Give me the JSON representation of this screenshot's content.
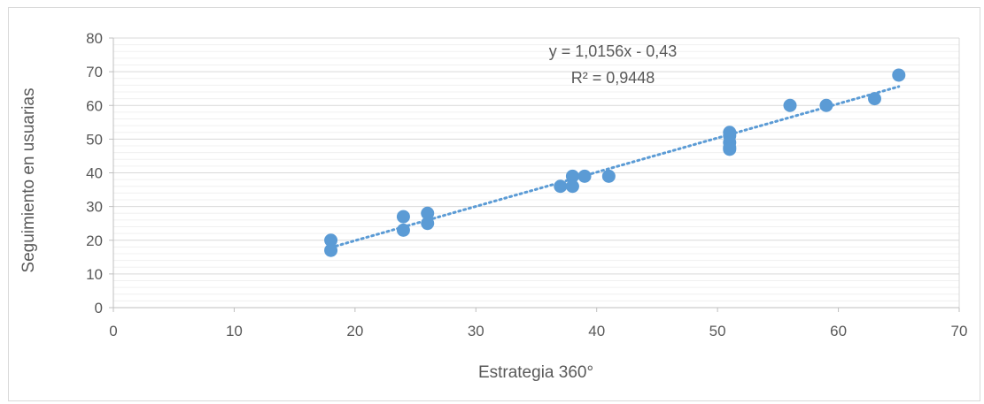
{
  "chart_data": {
    "type": "scatter",
    "xlabel": "Estrategia 360°",
    "ylabel": "Seguimiento en usuarias",
    "xlim": [
      0,
      70
    ],
    "ylim": [
      0,
      80
    ],
    "x_ticks": [
      0,
      10,
      20,
      30,
      40,
      50,
      60,
      70
    ],
    "y_ticks": [
      0,
      10,
      20,
      30,
      40,
      50,
      60,
      70,
      80
    ],
    "y_minor_step": 2,
    "grid": true,
    "legend": "none",
    "series": [
      {
        "color": "#5b9bd5",
        "points": [
          [
            18,
            20
          ],
          [
            18,
            17
          ],
          [
            24,
            27
          ],
          [
            24,
            23
          ],
          [
            26,
            28
          ],
          [
            26,
            25
          ],
          [
            37,
            36
          ],
          [
            38,
            39
          ],
          [
            38,
            36
          ],
          [
            39,
            39
          ],
          [
            41,
            39
          ],
          [
            51,
            52
          ],
          [
            51,
            51
          ],
          [
            51,
            49
          ],
          [
            51,
            47.5
          ],
          [
            51,
            47
          ],
          [
            56,
            60
          ],
          [
            59,
            60
          ],
          [
            63,
            62
          ],
          [
            65,
            69
          ]
        ]
      }
    ],
    "trendline": {
      "type": "linear",
      "slope": 1.0156,
      "intercept": -0.43,
      "x_range": [
        18,
        65
      ],
      "color": "#5b9bd5",
      "equation_label": "y = 1,0156x - 0,43",
      "r2_label": "R² = 0,9448"
    }
  }
}
